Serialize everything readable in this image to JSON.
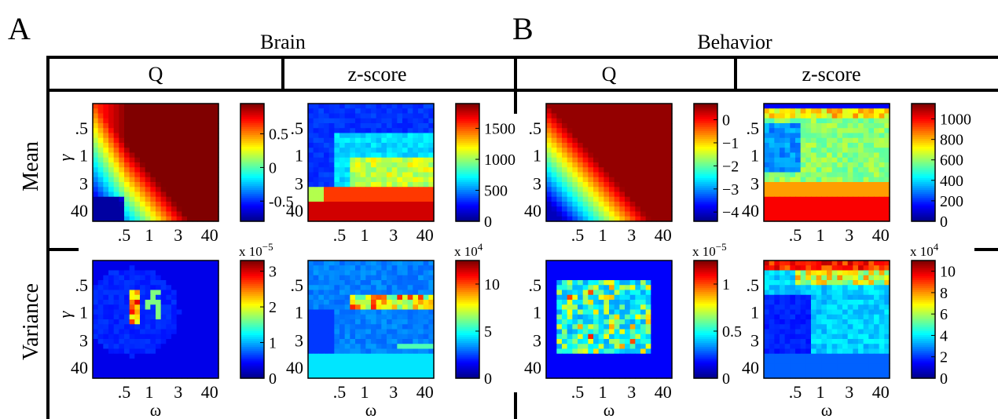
{
  "panel_labels": [
    "A",
    "B"
  ],
  "groups": [
    "Brain",
    "Behavior"
  ],
  "columns": [
    "Q",
    "z-score",
    "Q",
    "z-score"
  ],
  "rows": [
    "Mean",
    "Variance"
  ],
  "y_axis_symbol": "γ",
  "x_axis_symbol": "ω",
  "y_ticks": [
    ".5",
    "1",
    "3",
    "40"
  ],
  "x_ticks": [
    ".5",
    "1",
    "3",
    "40"
  ],
  "colormap": [
    "#00008f",
    "#0000ff",
    "#0080ff",
    "#00ffff",
    "#80ff80",
    "#ffff00",
    "#ff8000",
    "#ff0000",
    "#800000"
  ],
  "chart_data": [
    {
      "type": "heatmap",
      "group": "Brain",
      "column": "Q",
      "row": "Mean",
      "clim": [
        -0.8,
        0.95
      ],
      "colorbar_ticks": [
        "0.5",
        "0",
        "-0.5"
      ],
      "colorbar_tick_values": [
        0.5,
        0,
        -0.5
      ],
      "multiplier": "",
      "pattern": "q_brain_mean"
    },
    {
      "type": "heatmap",
      "group": "Brain",
      "column": "z-score",
      "row": "Mean",
      "clim": [
        0,
        1900
      ],
      "colorbar_ticks": [
        "1500",
        "1000",
        "500",
        "0"
      ],
      "colorbar_tick_values": [
        1500,
        1000,
        500,
        0
      ],
      "multiplier": "",
      "pattern": "z_brain_mean"
    },
    {
      "type": "heatmap",
      "group": "Behavior",
      "column": "Q",
      "row": "Mean",
      "clim": [
        -4.4,
        0.7
      ],
      "colorbar_ticks": [
        "0",
        "−1",
        "−2",
        "−3",
        "−4"
      ],
      "colorbar_tick_values": [
        0,
        -1,
        -2,
        -3,
        -4
      ],
      "multiplier": "",
      "pattern": "q_behavior_mean"
    },
    {
      "type": "heatmap",
      "group": "Behavior",
      "column": "z-score",
      "row": "Mean",
      "clim": [
        0,
        1150
      ],
      "colorbar_ticks": [
        "1000",
        "800",
        "600",
        "400",
        "200",
        "0"
      ],
      "colorbar_tick_values": [
        1000,
        800,
        600,
        400,
        200,
        0
      ],
      "multiplier": "",
      "pattern": "z_behavior_mean"
    },
    {
      "type": "heatmap",
      "group": "Brain",
      "column": "Q",
      "row": "Variance",
      "clim": [
        0,
        3.3
      ],
      "colorbar_ticks": [
        "3",
        "2",
        "1",
        "0"
      ],
      "colorbar_tick_values": [
        3,
        2,
        1,
        0
      ],
      "multiplier": "x 10",
      "multiplier_exp": "−5",
      "pattern": "q_brain_var"
    },
    {
      "type": "heatmap",
      "group": "Brain",
      "column": "z-score",
      "row": "Variance",
      "clim": [
        0,
        12.5
      ],
      "colorbar_ticks": [
        "10",
        "5",
        "0"
      ],
      "colorbar_tick_values": [
        10,
        5,
        0
      ],
      "multiplier": "x 10",
      "multiplier_exp": "4",
      "pattern": "z_brain_var"
    },
    {
      "type": "heatmap",
      "group": "Behavior",
      "column": "Q",
      "row": "Variance",
      "clim": [
        0,
        1.25
      ],
      "colorbar_ticks": [
        "1",
        "0.5",
        "0"
      ],
      "colorbar_tick_values": [
        1,
        0.5,
        0
      ],
      "multiplier": "x 10",
      "multiplier_exp": "−5",
      "pattern": "q_behavior_var"
    },
    {
      "type": "heatmap",
      "group": "Behavior",
      "column": "z-score",
      "row": "Variance",
      "clim": [
        0,
        11
      ],
      "colorbar_ticks": [
        "10",
        "8",
        "6",
        "4",
        "2",
        "0"
      ],
      "colorbar_tick_values": [
        10,
        8,
        6,
        4,
        2,
        0
      ],
      "multiplier": "x 10",
      "multiplier_exp": "4",
      "pattern": "z_behavior_var"
    }
  ]
}
